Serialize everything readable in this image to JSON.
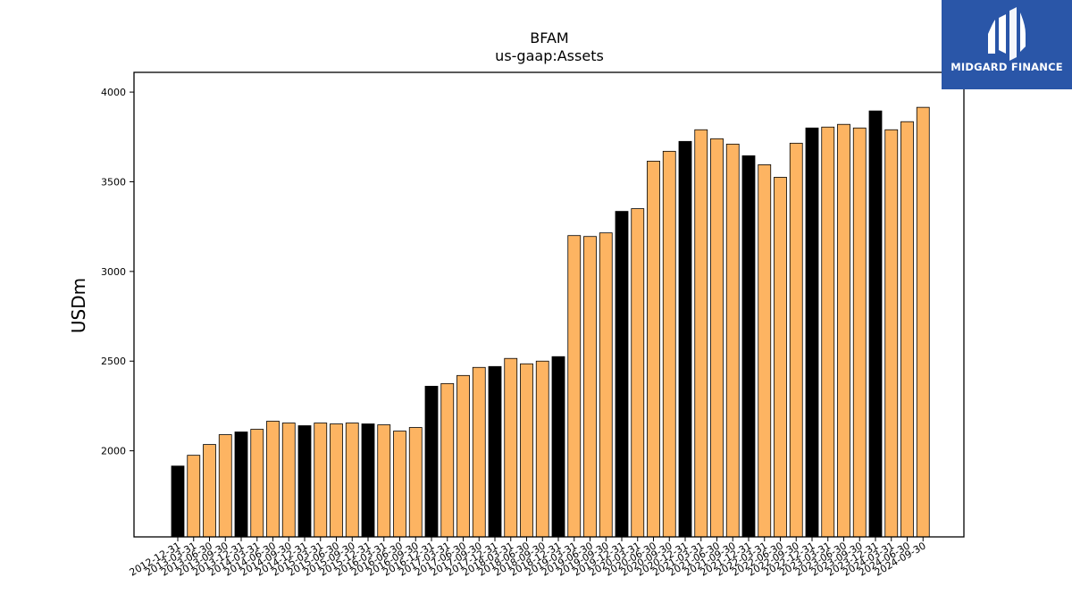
{
  "chart_data": {
    "type": "bar",
    "title": "BFAM",
    "subtitle": "us-gaap:Assets",
    "xlabel": "",
    "ylabel": "USDm",
    "ylim": [
      1520,
      4110
    ],
    "yticks": [
      2000,
      2500,
      3000,
      3500,
      4000
    ],
    "grid": false,
    "legend": "none",
    "colors": {
      "annual": "#000000",
      "quarterly": "#fdb462",
      "edge": "#000000"
    },
    "categories": [
      "2012-12-31",
      "2013-03-31",
      "2013-06-30",
      "2013-09-30",
      "2013-12-31",
      "2014-03-31",
      "2014-06-30",
      "2014-09-30",
      "2014-12-31",
      "2015-03-31",
      "2015-06-30",
      "2015-09-30",
      "2015-12-31",
      "2016-03-31",
      "2016-06-30",
      "2016-09-30",
      "2016-12-31",
      "2017-03-31",
      "2017-06-30",
      "2017-09-30",
      "2017-12-31",
      "2018-03-31",
      "2018-06-30",
      "2018-09-30",
      "2018-12-31",
      "2019-03-31",
      "2019-06-30",
      "2019-09-30",
      "2019-12-31",
      "2020-03-31",
      "2020-06-30",
      "2020-09-30",
      "2020-12-31",
      "2021-03-31",
      "2021-06-30",
      "2021-09-30",
      "2021-12-31",
      "2022-03-31",
      "2022-06-30",
      "2022-09-30",
      "2022-12-31",
      "2023-03-31",
      "2023-06-30",
      "2023-09-30",
      "2023-12-31",
      "2024-03-31",
      "2024-06-30",
      "2024-09-30"
    ],
    "values": [
      1915,
      1975,
      2035,
      2090,
      2105,
      2120,
      2165,
      2155,
      2140,
      2155,
      2150,
      2155,
      2150,
      2145,
      2110,
      2130,
      2360,
      2375,
      2420,
      2465,
      2470,
      2515,
      2485,
      2500,
      2525,
      3200,
      3195,
      3215,
      3335,
      3350,
      3615,
      3670,
      3725,
      3790,
      3740,
      3710,
      3645,
      3595,
      3525,
      3715,
      3800,
      3805,
      3820,
      3800,
      3895,
      3790,
      3835,
      3915
    ],
    "annual": [
      true,
      false,
      false,
      false,
      true,
      false,
      false,
      false,
      true,
      false,
      false,
      false,
      true,
      false,
      false,
      false,
      true,
      false,
      false,
      false,
      true,
      false,
      false,
      false,
      true,
      false,
      false,
      false,
      true,
      false,
      false,
      false,
      true,
      false,
      false,
      false,
      true,
      false,
      false,
      false,
      true,
      false,
      false,
      false,
      true,
      false,
      false,
      false
    ]
  },
  "logo": {
    "text": "MIDGARD FINANCE",
    "color": "#2a56a8"
  }
}
